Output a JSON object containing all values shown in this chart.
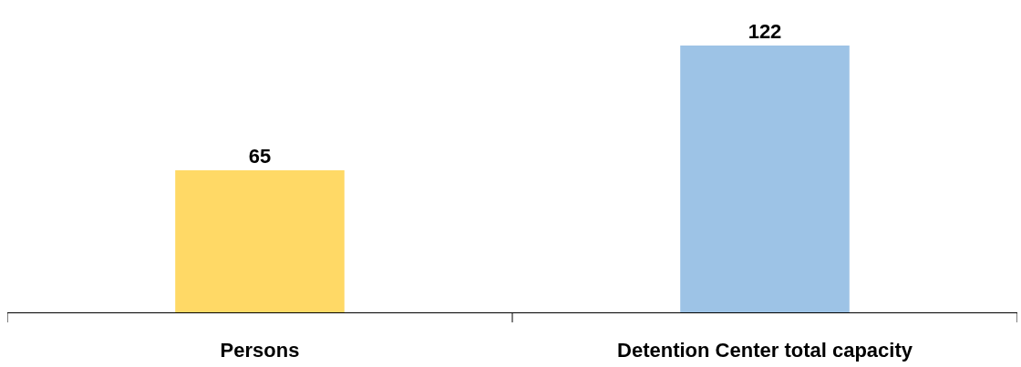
{
  "chart_data": {
    "type": "bar",
    "categories": [
      "Persons",
      "Detention Center total capacity"
    ],
    "values": [
      65,
      122
    ],
    "colors": [
      "#ffd966",
      "#9dc3e6"
    ],
    "data_labels": true,
    "legend": false
  }
}
